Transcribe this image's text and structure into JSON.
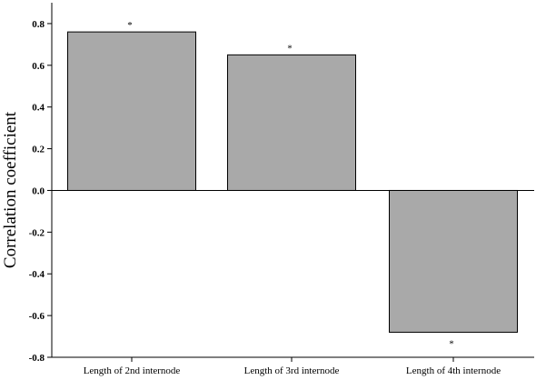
{
  "chart_data": {
    "type": "bar",
    "categories": [
      "Length of 2nd internode",
      "Length of 3rd internode",
      "Length of 4th internode"
    ],
    "values": [
      0.76,
      0.65,
      -0.68
    ],
    "annotations": [
      "*",
      "*",
      "*"
    ],
    "title": "",
    "xlabel": "",
    "ylabel": "Correlation coefficient",
    "ylim": [
      -0.8,
      0.9
    ],
    "yticks": [
      "0.8",
      "0.6",
      "0.4",
      "0.2",
      "0.0",
      "-0.2",
      "-0.4",
      "-0.6",
      "-0.8"
    ],
    "ytick_values": [
      0.8,
      0.6,
      0.4,
      0.2,
      0.0,
      -0.2,
      -0.4,
      -0.6,
      -0.8
    ],
    "bar_color": "#a9a9a9",
    "grid": false,
    "legend": "none"
  }
}
